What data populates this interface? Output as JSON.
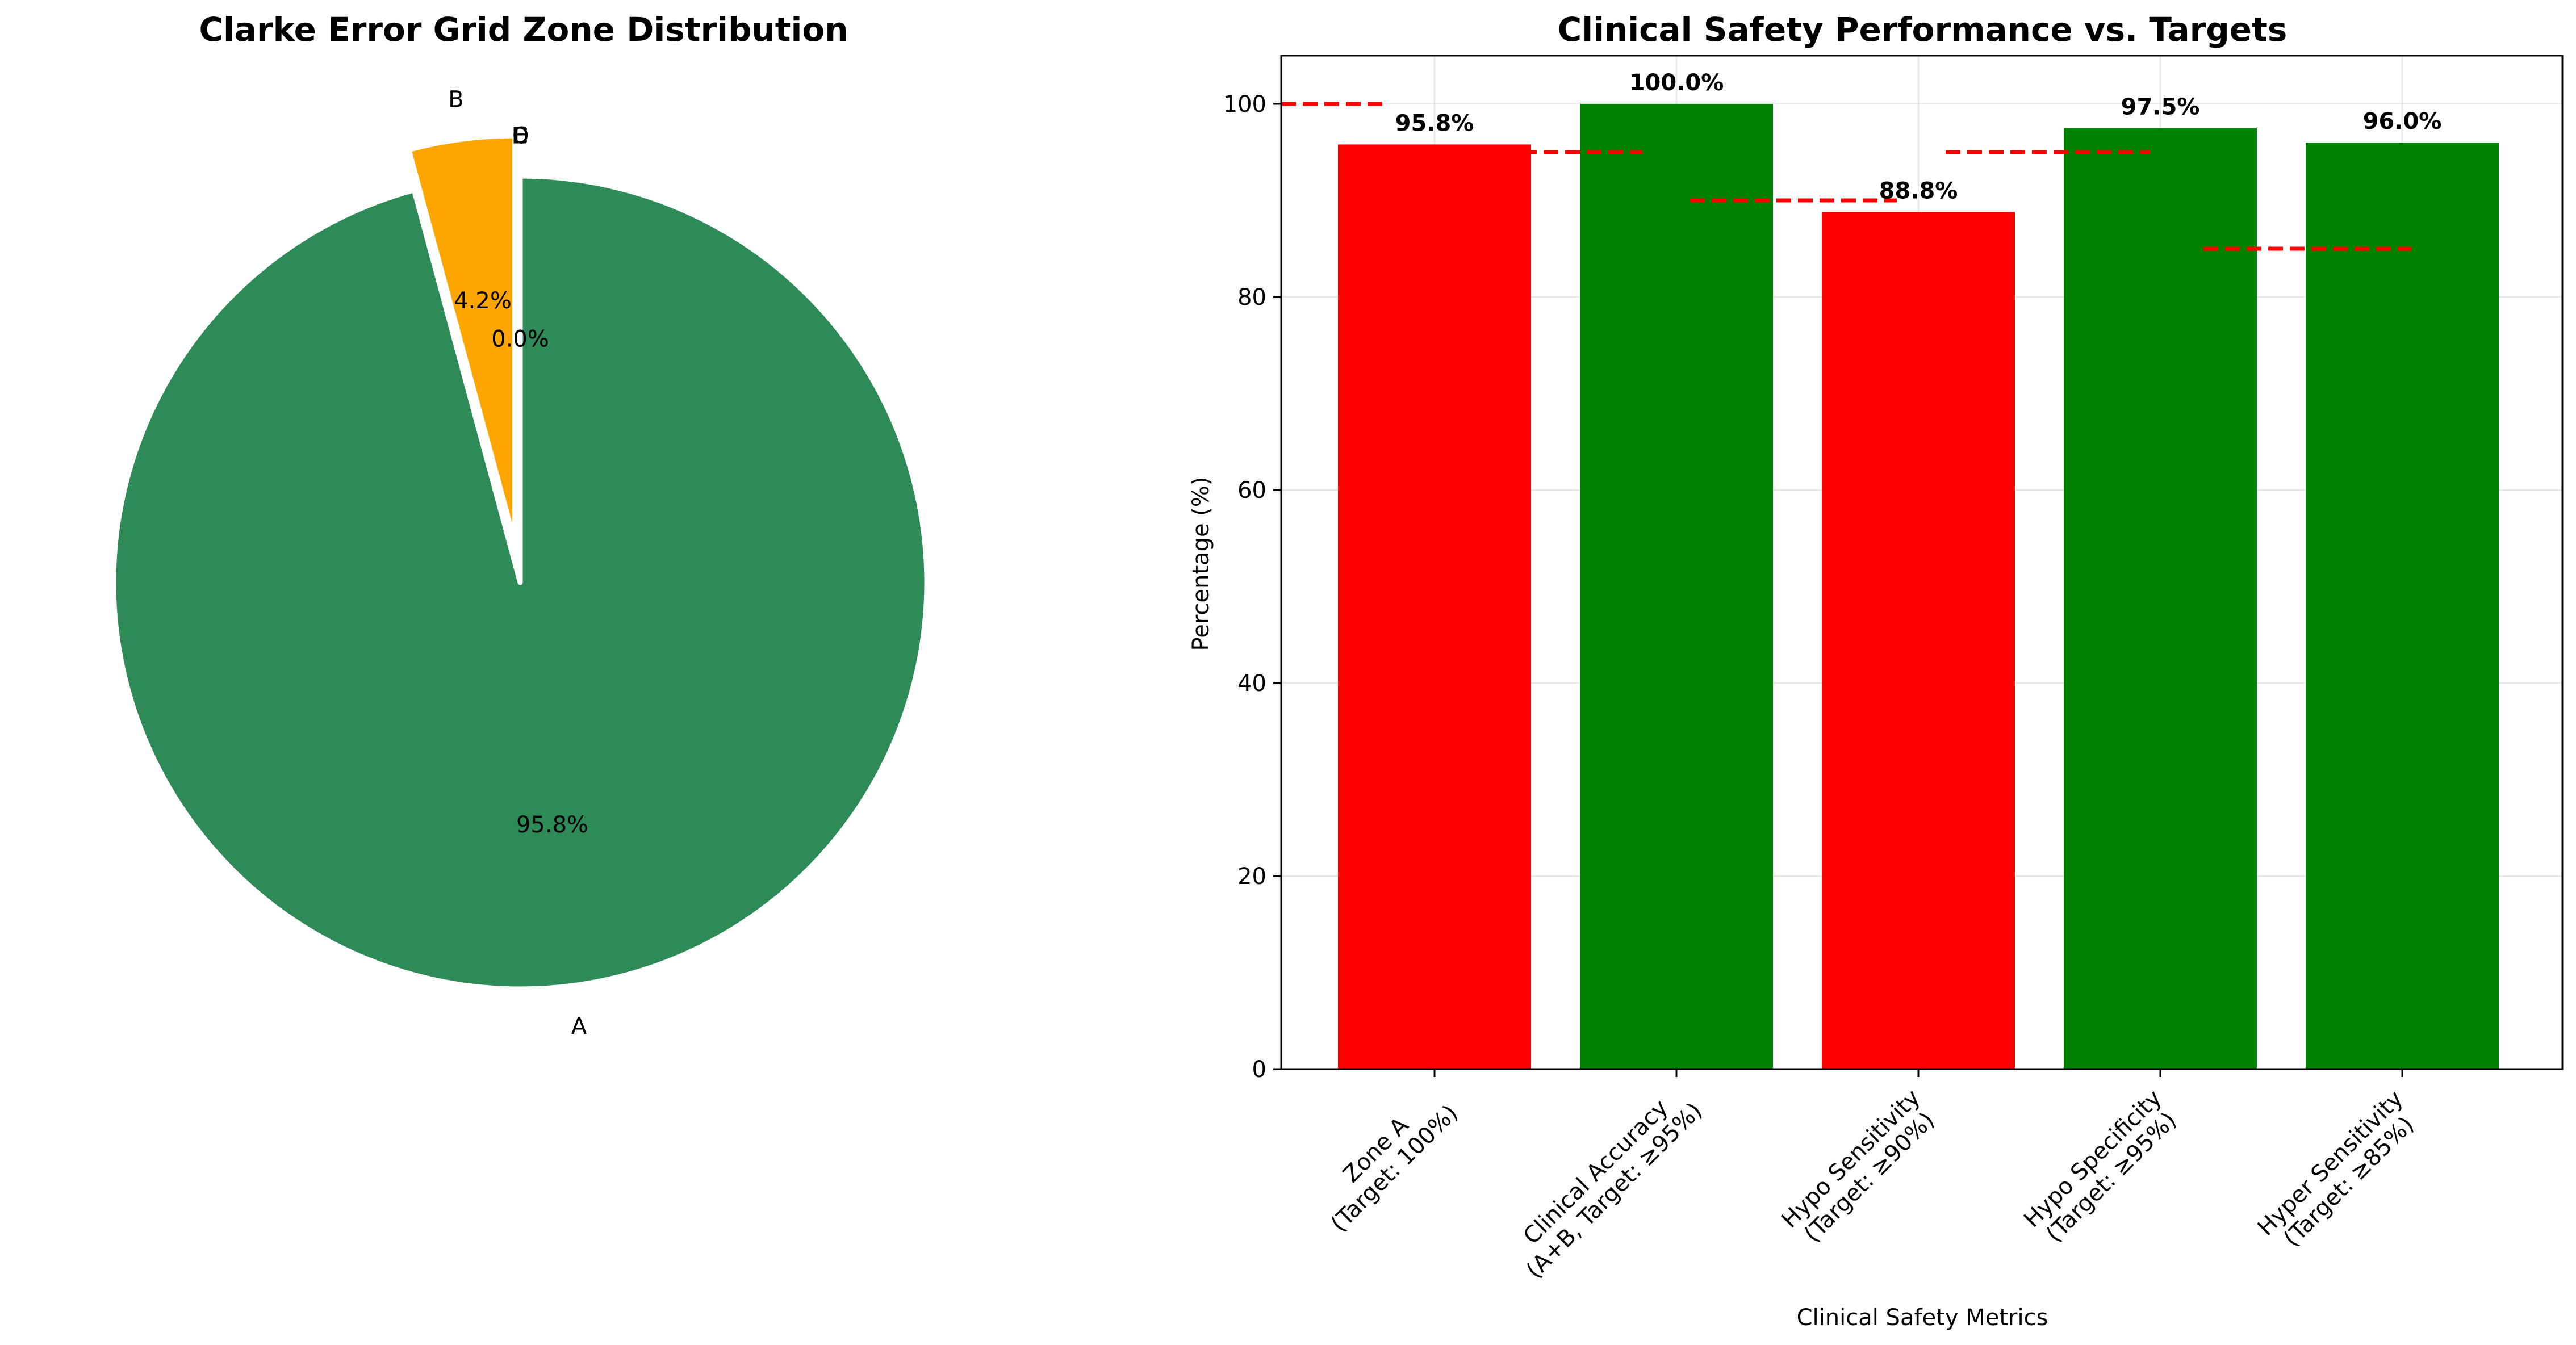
{
  "chart_data": [
    {
      "type": "pie",
      "title": "Clarke Error Grid Zone Distribution",
      "labels": [
        "A",
        "B",
        "C",
        "D",
        "E"
      ],
      "values": [
        95.8,
        4.2,
        0.0,
        0.0,
        0.0
      ],
      "value_labels": [
        "95.8%",
        "4.2%",
        "0.0%",
        "0.0%",
        "0.0%"
      ],
      "colors": [
        "#2E8B57",
        "#FFA500",
        "#FF8C00",
        "#FF0000",
        "#8B0000"
      ],
      "explode": [
        0,
        0.1,
        0,
        0,
        0
      ],
      "start_angle_deg": 90,
      "direction": "clockwise"
    },
    {
      "type": "bar",
      "title": "Clinical Safety Performance vs. Targets",
      "xlabel": "Clinical Safety Metrics",
      "ylabel": "Percentage (%)",
      "categories": [
        [
          "Zone A",
          "(Target: 100%)"
        ],
        [
          "Clinical Accuracy",
          "(A+B, Target: ≥95%)"
        ],
        [
          "Hypo Sensitivity",
          "(Target: ≥90%)"
        ],
        [
          "Hypo Specificity",
          "(Target: ≥95%)"
        ],
        [
          "Hyper Sensitivity",
          "(Target: ≥85%)"
        ]
      ],
      "values": [
        95.8,
        100.0,
        88.8,
        97.5,
        96.0
      ],
      "value_labels": [
        "95.8%",
        "100.0%",
        "88.8%",
        "97.5%",
        "96.0%"
      ],
      "targets": [
        100,
        95,
        90,
        95,
        85
      ],
      "bar_colors": [
        "#FF0000",
        "#008000",
        "#FF0000",
        "#008000",
        "#008000"
      ],
      "target_line_color": "#FF0000",
      "ylim": [
        0,
        105
      ],
      "yticks": [
        0,
        20,
        40,
        60,
        80,
        100
      ],
      "grid": true
    }
  ]
}
